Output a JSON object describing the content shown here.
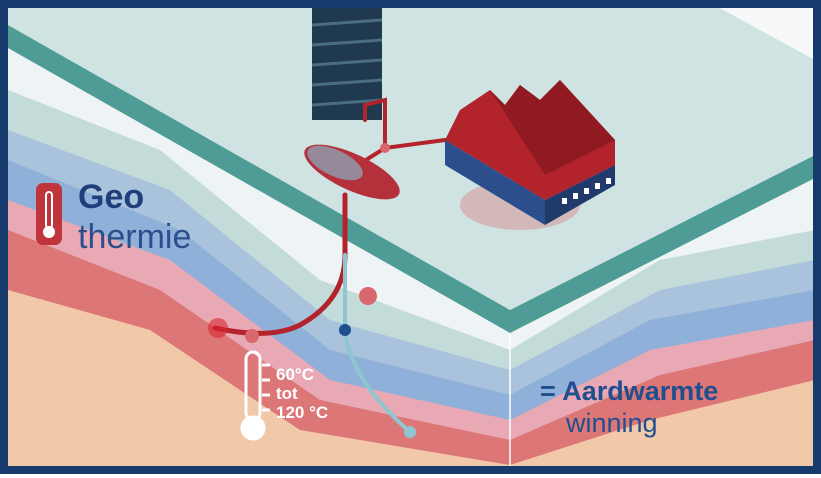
{
  "title": {
    "line1": "Geo",
    "line2": "thermie"
  },
  "temperature": {
    "line1": "60°C",
    "line2": "tot",
    "line3": "120 °C"
  },
  "caption": {
    "line1": "= Aardwarmte",
    "line2": "winning"
  }
}
